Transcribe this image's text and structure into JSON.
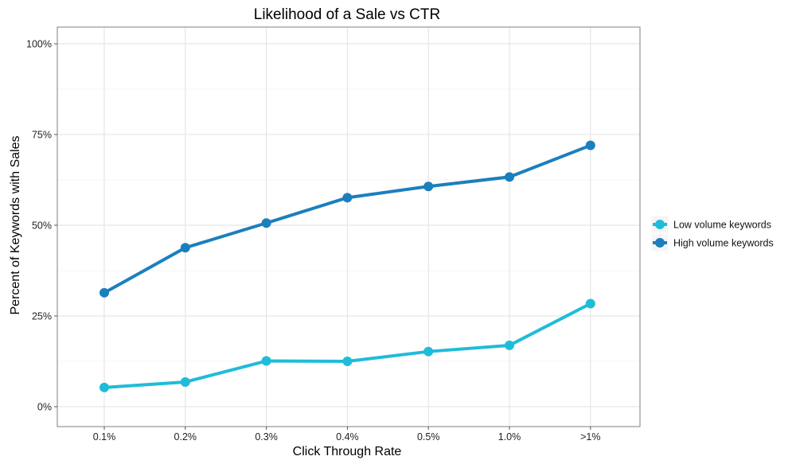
{
  "chart_data": {
    "type": "line",
    "title": "Likelihood of a Sale vs CTR",
    "xlabel": "Click Through Rate",
    "ylabel": "Percent of Keywords with Sales",
    "categories": [
      "0.1%",
      "0.2%",
      "0.3%",
      "0.4%",
      "0.5%",
      "1.0%",
      ">1%"
    ],
    "ylim": [
      0,
      100
    ],
    "yticks": [
      0,
      25,
      50,
      75,
      100
    ],
    "ytick_labels": [
      "0%",
      "25%",
      "50%",
      "75%",
      "100%"
    ],
    "grid": true,
    "legend_position": "right",
    "series": [
      {
        "name": "Low volume keywords",
        "color": "#1fbcd9",
        "values": [
          5.3,
          6.8,
          12.6,
          12.5,
          15.2,
          16.9,
          28.4
        ]
      },
      {
        "name": "High volume keywords",
        "color": "#1b7fbd",
        "values": [
          31.4,
          43.8,
          50.6,
          57.6,
          60.7,
          63.3,
          72.0
        ]
      }
    ]
  }
}
